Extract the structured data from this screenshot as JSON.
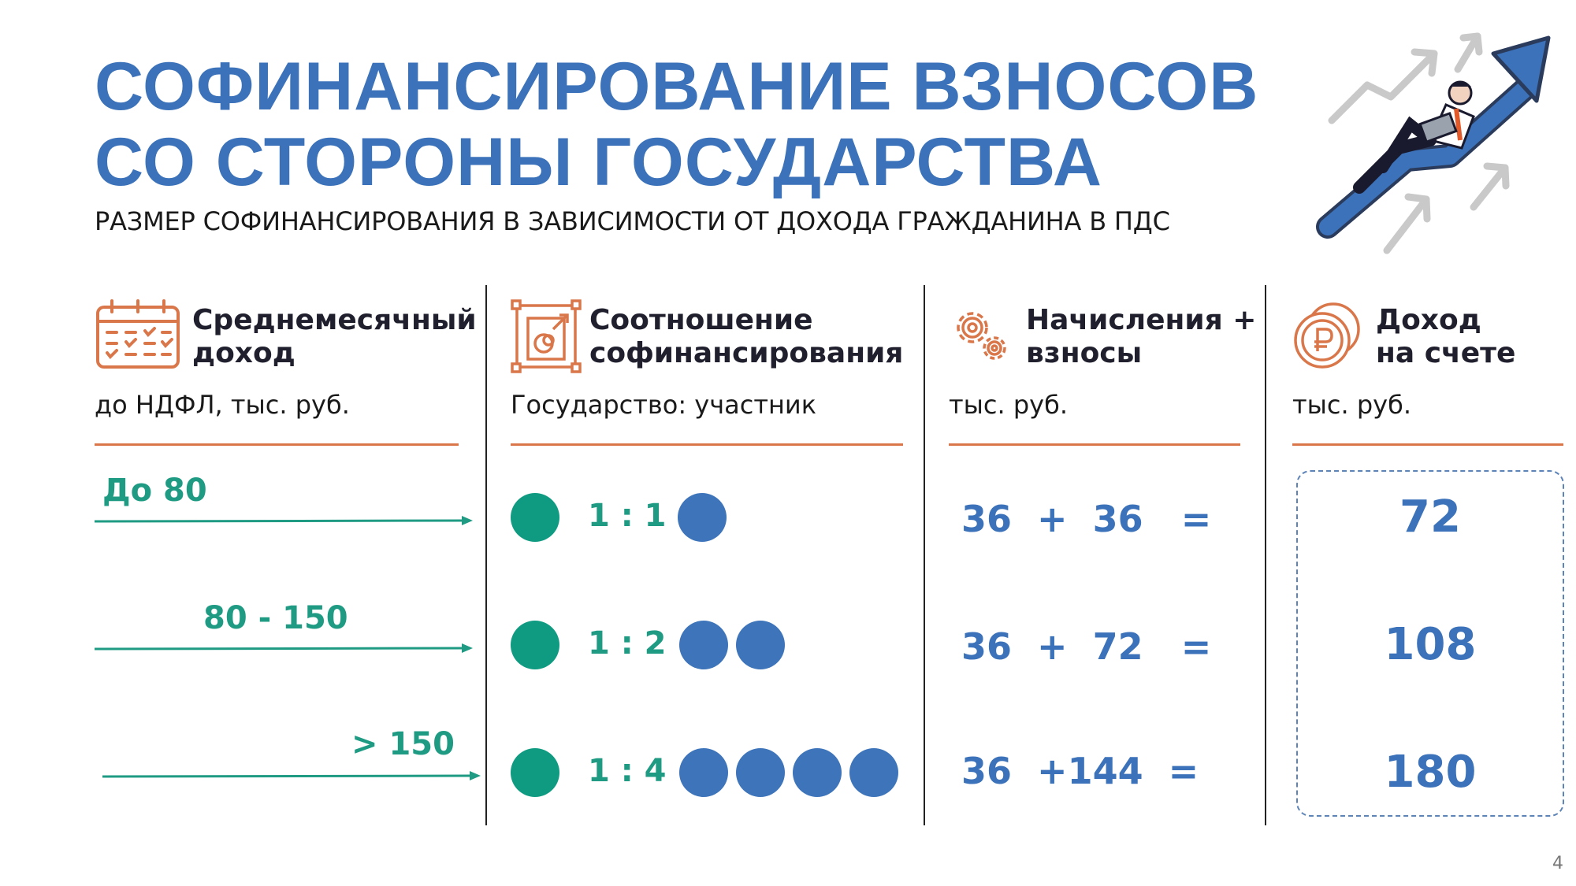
{
  "title": {
    "line1": "СОФИНАНСИРОВАНИЕ ВЗНОСОВ",
    "line2": "СО СТОРОНЫ ГОСУДАРСТВА"
  },
  "subtitle": "РАЗМЕР СОФИНАНСИРОВАНИЯ В ЗАВИСИМОСТИ ОТ ДОХОДА ГРАЖДАНИНА В ПДС",
  "colors": {
    "title_blue": "#3b72b9",
    "accent_orange": "#d9774a",
    "teal": "#0f9b81",
    "blue_dot": "#3d74ba"
  },
  "columns": [
    {
      "icon": "calendar-icon",
      "heading_line1": "Среднемесячный",
      "heading_line2": "доход",
      "unit": "до НДФЛ, тыс. руб."
    },
    {
      "icon": "ratio-blueprint-icon",
      "heading_line1": "Соотношение",
      "heading_line2": "софинансирования",
      "unit": "Государство: участник"
    },
    {
      "icon": "gears-icon",
      "heading_line1": "Начисления +",
      "heading_line2": "взносы",
      "unit": "тыс. руб."
    },
    {
      "icon": "ruble-coins-icon",
      "heading_line1": "Доход",
      "heading_line2": "на счете",
      "unit": "тыс. руб."
    }
  ],
  "rows": [
    {
      "income": "До 80",
      "ratio": "1 : 1",
      "state_dots": 1,
      "participant_dots": 1,
      "contribution": "36",
      "plus": "+",
      "cofinancing": "36",
      "equals": "=",
      "result": "72"
    },
    {
      "income": "80 - 150",
      "ratio": "1 : 2",
      "state_dots": 1,
      "participant_dots": 2,
      "contribution": "36",
      "plus": "+",
      "cofinancing": "72",
      "equals": "=",
      "result": "108"
    },
    {
      "income": "> 150",
      "ratio": "1 : 4",
      "state_dots": 1,
      "participant_dots": 4,
      "contribution": "36",
      "plus": "+",
      "cofinancing": "144",
      "equals": "=",
      "result": "180"
    }
  ],
  "illustration": "man-riding-growth-arrow",
  "page_number": "4"
}
